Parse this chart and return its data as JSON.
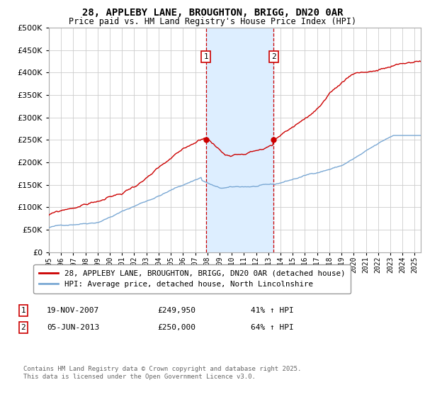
{
  "title": "28, APPLEBY LANE, BROUGHTON, BRIGG, DN20 0AR",
  "subtitle": "Price paid vs. HM Land Registry's House Price Index (HPI)",
  "legend_line1": "28, APPLEBY LANE, BROUGHTON, BRIGG, DN20 0AR (detached house)",
  "legend_line2": "HPI: Average price, detached house, North Lincolnshire",
  "annotation1_label": "1",
  "annotation1_date": "19-NOV-2007",
  "annotation1_price": "£249,950",
  "annotation1_hpi": "41% ↑ HPI",
  "annotation2_label": "2",
  "annotation2_date": "05-JUN-2013",
  "annotation2_price": "£250,000",
  "annotation2_hpi": "64% ↑ HPI",
  "footnote_line1": "Contains HM Land Registry data © Crown copyright and database right 2025.",
  "footnote_line2": "This data is licensed under the Open Government Licence v3.0.",
  "vline1_year": 2007.88,
  "vline2_year": 2013.43,
  "ylim_max": 500000,
  "xlim_start": 1995.0,
  "xlim_end": 2025.5,
  "red_color": "#cc0000",
  "blue_color": "#7aa8d4",
  "shade_color": "#ddeeff",
  "background_color": "#ffffff",
  "grid_color": "#cccccc",
  "spine_color": "#aaaaaa",
  "dot_color": "#cc0000"
}
